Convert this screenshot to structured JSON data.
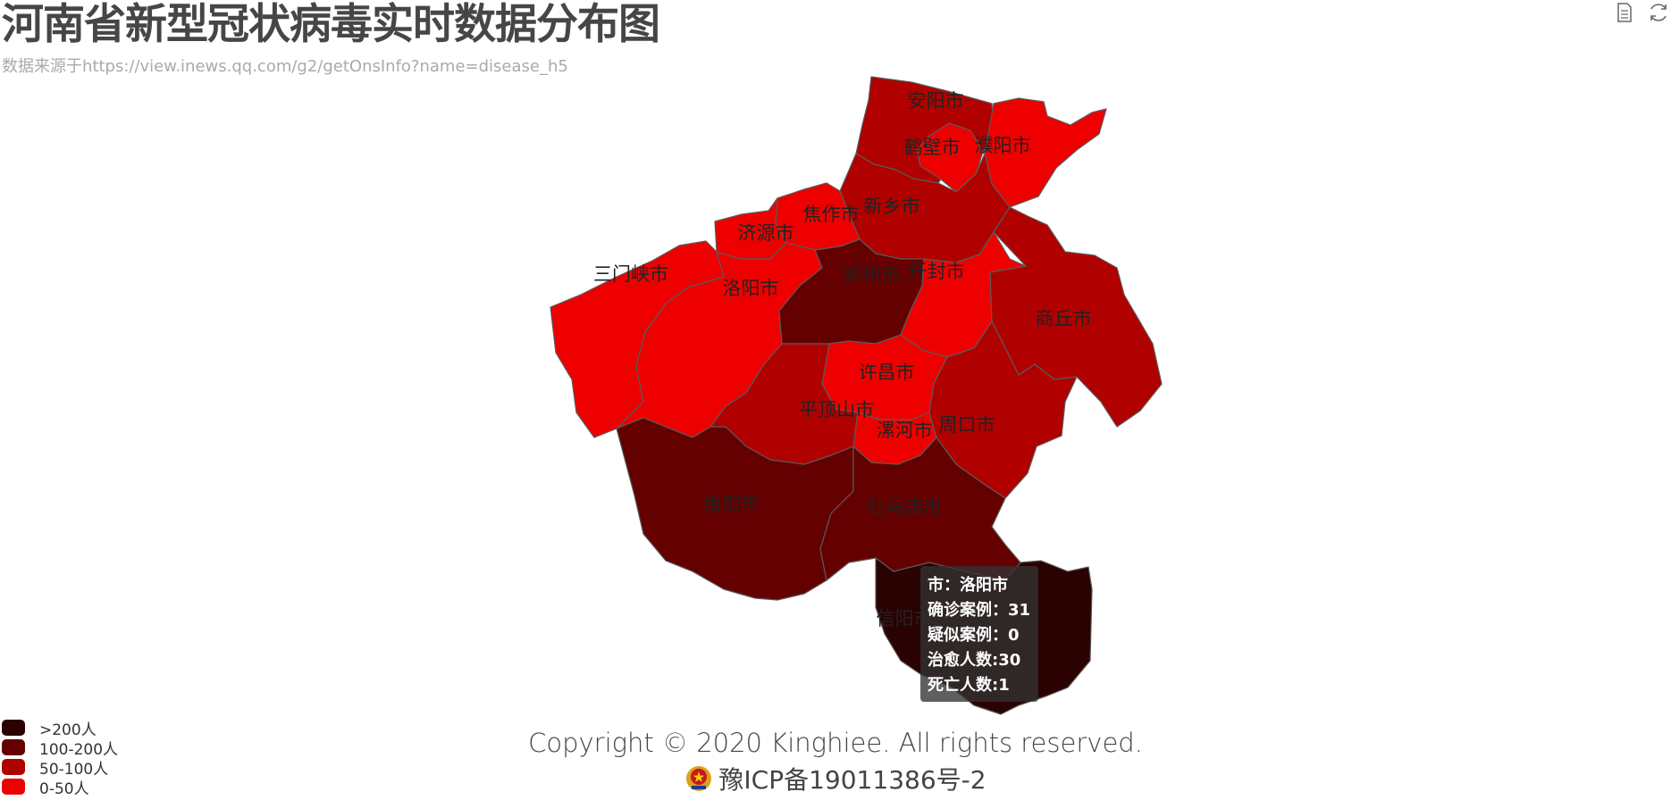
{
  "title": "河南省新型冠状病毒实时数据分布图",
  "subtitle": "数据来源于https://view.inews.qq.com/g2/getOnsInfo?name=disease_h5",
  "toolbox": {
    "icons": [
      "data-view-icon",
      "restore-icon"
    ]
  },
  "chart_data": {
    "type": "map",
    "region": "河南省",
    "colors": {
      ">200人": "#2a0202",
      "100-200人": "#640000",
      "50-100人": "#b00000",
      "0-50人": "#ee0000"
    },
    "cities": [
      {
        "name": "安阳市",
        "category": "50-100人"
      },
      {
        "name": "鹤壁市",
        "category": "0-50人"
      },
      {
        "name": "濮阳市",
        "category": "0-50人"
      },
      {
        "name": "新乡市",
        "category": "50-100人"
      },
      {
        "name": "焦作市",
        "category": "0-50人"
      },
      {
        "name": "济源市",
        "category": "0-50人"
      },
      {
        "name": "三门峡市",
        "category": "0-50人"
      },
      {
        "name": "洛阳市",
        "category": "0-50人",
        "confirmed": 31,
        "suspected": 0,
        "cured": 30,
        "dead": 1
      },
      {
        "name": "郑州市",
        "category": "100-200人"
      },
      {
        "name": "开封市",
        "category": "0-50人"
      },
      {
        "name": "商丘市",
        "category": "50-100人"
      },
      {
        "name": "许昌市",
        "category": "0-50人"
      },
      {
        "name": "平顶山市",
        "category": "50-100人"
      },
      {
        "name": "漯河市",
        "category": "0-50人"
      },
      {
        "name": "周口市",
        "category": "50-100人"
      },
      {
        "name": "南阳市",
        "category": "100-200人"
      },
      {
        "name": "驻马店市",
        "category": "100-200人"
      },
      {
        "name": "信阳市",
        "category": ">200人"
      }
    ]
  },
  "legend": {
    "items": [
      {
        "label": ">200人",
        "color": "#2a0202"
      },
      {
        "label": "100-200人",
        "color": "#640000"
      },
      {
        "label": "50-100人",
        "color": "#b00000"
      },
      {
        "label": "0-50人",
        "color": "#ee0000"
      }
    ]
  },
  "tooltip": {
    "line1": "市：洛阳市",
    "line2": "确诊案例：31",
    "line3": "疑似案例：0",
    "line4": "治愈人数:30",
    "line5": "死亡人数:1"
  },
  "footer": {
    "copyright": "Copyright © 2020 Kinghiee. All rights reserved.",
    "icp": "豫ICP备19011386号-2"
  }
}
